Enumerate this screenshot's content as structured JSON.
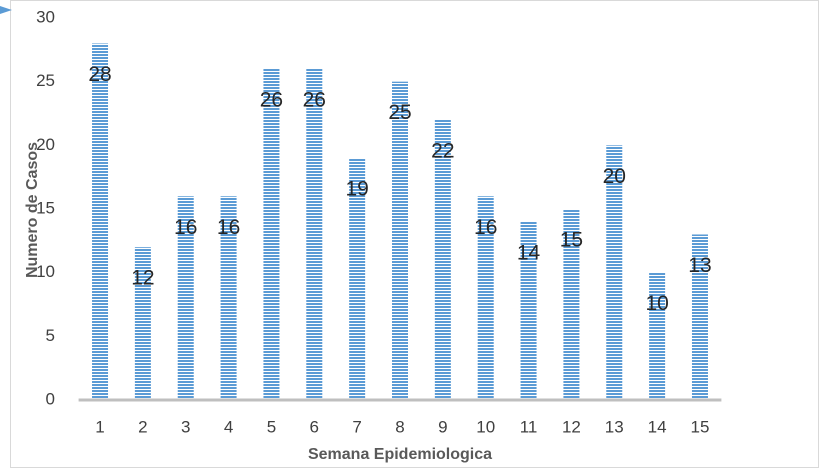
{
  "chart_data": {
    "type": "bar",
    "x_label": "Semana Epidemiologica",
    "y_label": "Numero de Casos",
    "categories": [
      "1",
      "2",
      "3",
      "4",
      "5",
      "6",
      "7",
      "8",
      "9",
      "10",
      "11",
      "12",
      "13",
      "14",
      "15"
    ],
    "values": [
      28,
      12,
      16,
      16,
      26,
      26,
      19,
      25,
      22,
      16,
      14,
      15,
      20,
      10,
      13
    ],
    "color": "#5b9bd5",
    "ylim": [
      0,
      30
    ],
    "yticks": [
      0,
      5,
      10,
      15,
      20,
      25,
      30
    ],
    "grid": false
  }
}
